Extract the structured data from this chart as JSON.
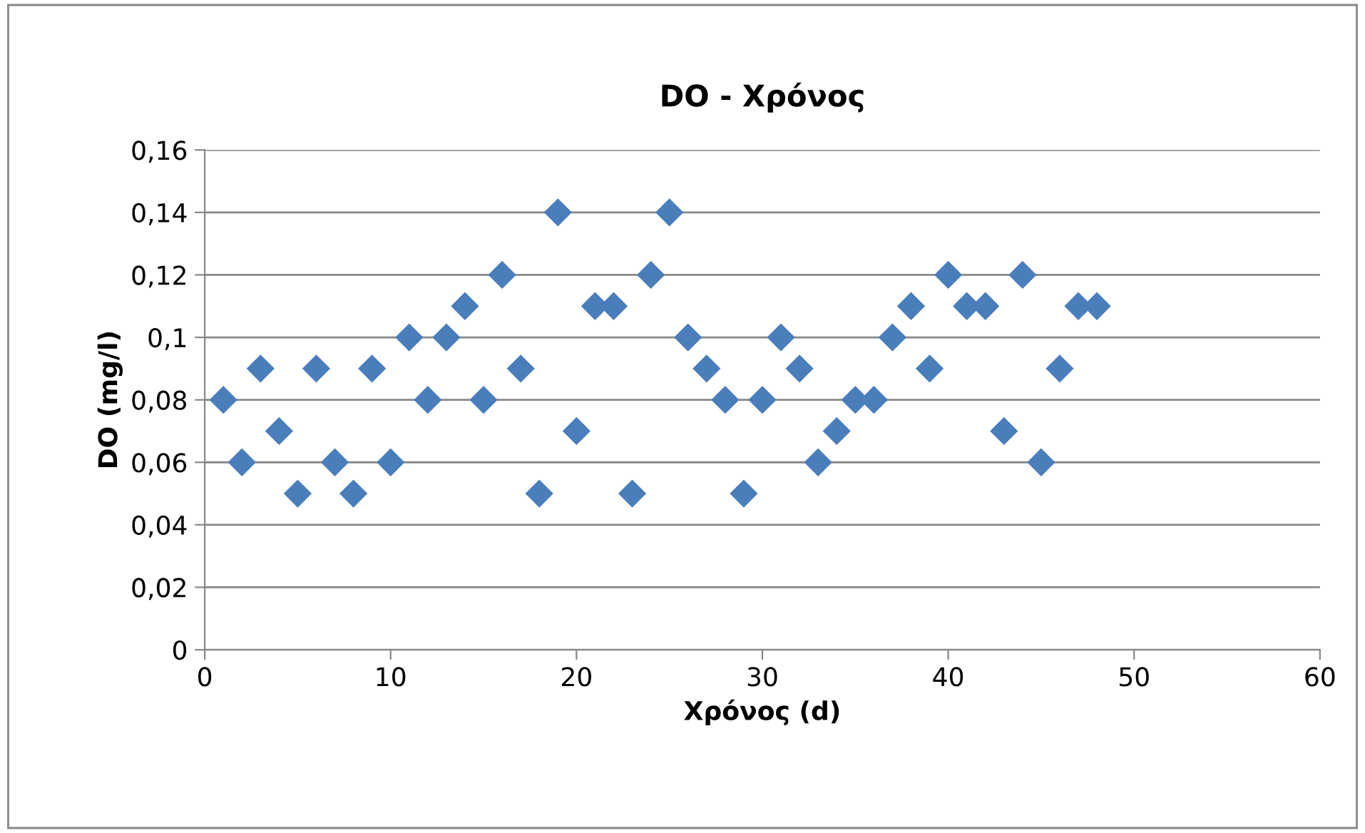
{
  "chart_data": {
    "type": "scatter",
    "title": "DO - Χρόνος",
    "xlabel": "Χρόνος (d)",
    "ylabel": "DO (mg/l)",
    "x": [
      1,
      2,
      3,
      4,
      5,
      6,
      7,
      8,
      9,
      10,
      11,
      12,
      13,
      14,
      15,
      16,
      17,
      18,
      19,
      20,
      21,
      22,
      23,
      24,
      25,
      26,
      27,
      28,
      29,
      30,
      31,
      32,
      33,
      34,
      35,
      36,
      37,
      38,
      39,
      40,
      41,
      42,
      43,
      44,
      45,
      46,
      47,
      48
    ],
    "series": [
      {
        "color": "#4a7ebb",
        "values": [
          0.08,
          0.06,
          0.09,
          0.07,
          0.05,
          0.09,
          0.06,
          0.05,
          0.09,
          0.06,
          0.1,
          0.08,
          0.1,
          0.11,
          0.08,
          0.12,
          0.09,
          0.05,
          0.14,
          0.07,
          0.11,
          0.11,
          0.05,
          0.12,
          0.14,
          0.1,
          0.09,
          0.08,
          0.05,
          0.08,
          0.1,
          0.09,
          0.06,
          0.07,
          0.08,
          0.08,
          0.1,
          0.11,
          0.09,
          0.12,
          0.11,
          0.11,
          0.07,
          0.12,
          0.06,
          0.09,
          0.11,
          0.11
        ]
      }
    ],
    "xlim": [
      0,
      60
    ],
    "xticks": [
      0,
      10,
      20,
      30,
      40,
      50,
      60
    ],
    "ylim": [
      0,
      0.16
    ],
    "yticks": [
      0,
      {
        "value": 0.02,
        "label": "0,02"
      },
      {
        "value": 0.04,
        "label": "0,04"
      },
      {
        "value": 0.06,
        "label": "0,06"
      },
      {
        "value": 0.08,
        "label": "0,08"
      },
      {
        "value": 0.1,
        "label": "0,1"
      },
      {
        "value": 0.12,
        "label": "0,12"
      },
      {
        "value": 0.14,
        "label": "0,14"
      },
      {
        "value": 0.16,
        "label": "0,16"
      }
    ],
    "grid": "y",
    "marker": "diamond",
    "legend": false
  }
}
